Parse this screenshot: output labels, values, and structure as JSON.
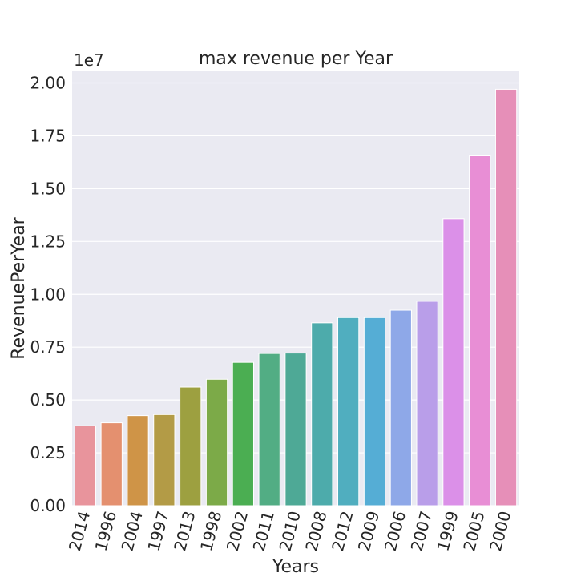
{
  "chart_data": {
    "type": "bar",
    "title": "max revenue per Year",
    "xlabel": "Years",
    "ylabel": "RevenuePerYear",
    "y_offset_label": "1e7",
    "ylim": [
      0,
      2.0
    ],
    "yticks": [
      "0.00",
      "0.25",
      "0.50",
      "0.75",
      "1.00",
      "1.25",
      "1.50",
      "1.75",
      "2.00"
    ],
    "grid": true,
    "categories": [
      "2014",
      "1996",
      "2004",
      "1997",
      "2013",
      "1998",
      "2002",
      "2011",
      "2010",
      "2008",
      "2012",
      "2009",
      "2006",
      "2007",
      "1999",
      "2005",
      "2000"
    ],
    "values": [
      0.378,
      0.392,
      0.426,
      0.431,
      0.561,
      0.598,
      0.678,
      0.72,
      0.722,
      0.865,
      0.89,
      0.89,
      0.925,
      0.967,
      1.358,
      1.655,
      1.97
    ],
    "colors": [
      "#e8949c",
      "#e4906f",
      "#cf9447",
      "#b39b46",
      "#9da040",
      "#7caa48",
      "#4bae52",
      "#52ad84",
      "#4ea996",
      "#4dabab",
      "#50aebf",
      "#55add5",
      "#8ea8e8",
      "#b99ee9",
      "#db90e8",
      "#e88ed5",
      "#e68fb8"
    ]
  }
}
